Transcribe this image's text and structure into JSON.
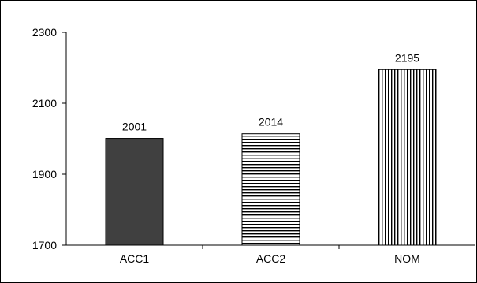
{
  "chart_data": {
    "type": "bar",
    "categories": [
      "ACC1",
      "ACC2",
      "NOM"
    ],
    "values": [
      2001,
      2014,
      2195
    ],
    "data_labels": [
      "2001",
      "2014",
      "2195"
    ],
    "ylim": [
      1700,
      2300
    ],
    "yticks": [
      1700,
      1900,
      2100,
      2300
    ],
    "ytick_labels": [
      "1700",
      "1900",
      "2100",
      "2300"
    ],
    "grid": false,
    "bar_fills": [
      "solid-dark",
      "horizontal-stripes",
      "vertical-stripes"
    ],
    "colors": {
      "bar_dark": "#404040",
      "stripe": "#000000",
      "axis": "#000000"
    }
  }
}
